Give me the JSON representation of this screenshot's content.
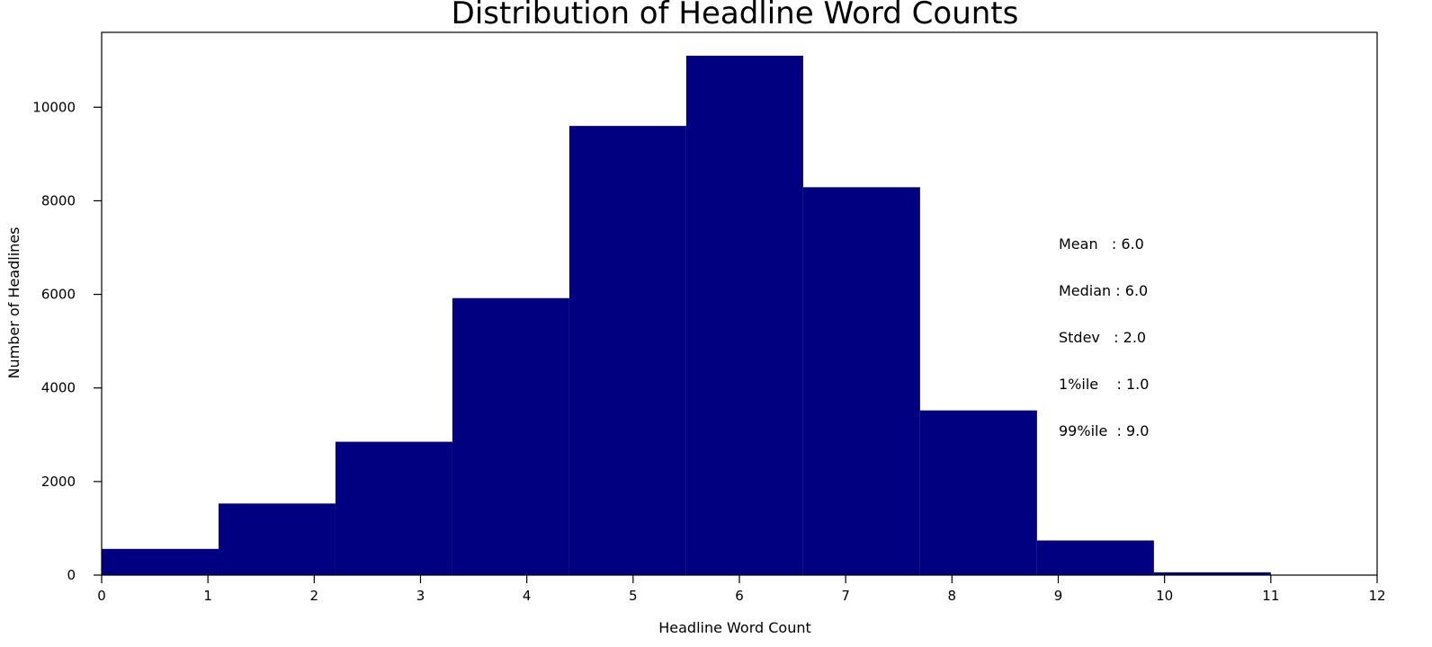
{
  "chart_data": {
    "type": "bar",
    "title": "Distribution of Headline Word Counts",
    "xlabel": "Headline Word Count",
    "ylabel": "Number of Headlines",
    "xlim": [
      0,
      12
    ],
    "ylim": [
      0,
      11600
    ],
    "xticks": [
      "0",
      "1",
      "2",
      "3",
      "4",
      "5",
      "6",
      "7",
      "8",
      "9",
      "10",
      "11",
      "12"
    ],
    "yticks": [
      "0",
      "2000",
      "4000",
      "6000",
      "8000",
      "10000"
    ],
    "bin_edges": [
      0,
      1.1,
      2.2,
      3.3,
      4.4,
      5.5,
      6.6,
      7.7,
      8.8,
      9.9,
      11
    ],
    "values": [
      560,
      1530,
      2850,
      5920,
      9600,
      11100,
      8290,
      3520,
      740,
      60
    ],
    "bar_color": "#000080",
    "grid": false,
    "annotations": [
      "Mean   : 6.0",
      "Median : 6.0",
      "Stdev   : 2.0",
      "1%ile    : 1.0",
      "99%ile  : 9.0"
    ]
  }
}
